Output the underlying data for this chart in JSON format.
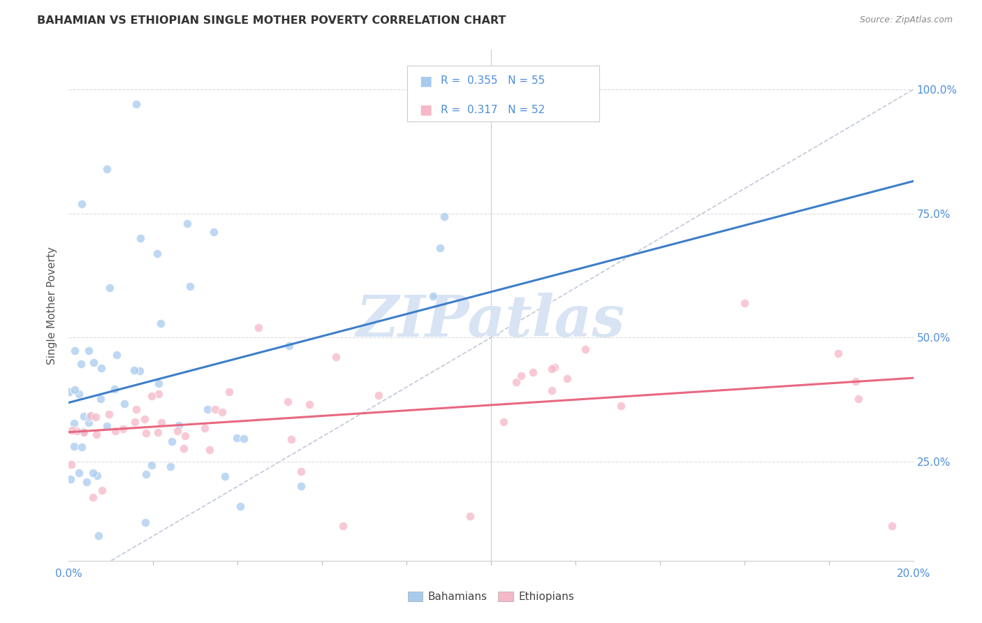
{
  "title": "BAHAMIAN VS ETHIOPIAN SINGLE MOTHER POVERTY CORRELATION CHART",
  "source": "Source: ZipAtlas.com",
  "ylabel": "Single Mother Poverty",
  "ytick_labels": [
    "25.0%",
    "50.0%",
    "75.0%",
    "100.0%"
  ],
  "ytick_values": [
    0.25,
    0.5,
    0.75,
    1.0
  ],
  "xmin": 0.0,
  "xmax": 0.2,
  "ymin": 0.05,
  "ymax": 1.08,
  "legend_blue_r": "0.355",
  "legend_blue_n": "55",
  "legend_pink_r": "0.317",
  "legend_pink_n": "52",
  "blue_scatter_color": "#A8CAEE",
  "pink_scatter_color": "#F5B8C8",
  "blue_line_color": "#3E7EC8",
  "pink_line_color": "#E86880",
  "diagonal_color": "#C0C8D8",
  "label_color": "#4E8EDD",
  "background_color": "#FFFFFF",
  "watermark_color": "#D8E4F4",
  "legend_label_bahamians": "Bahamians",
  "legend_label_ethiopians": "Ethiopians",
  "grid_color": "#DDDDDD",
  "title_color": "#333333",
  "source_color": "#888888",
  "ylabel_color": "#555555"
}
